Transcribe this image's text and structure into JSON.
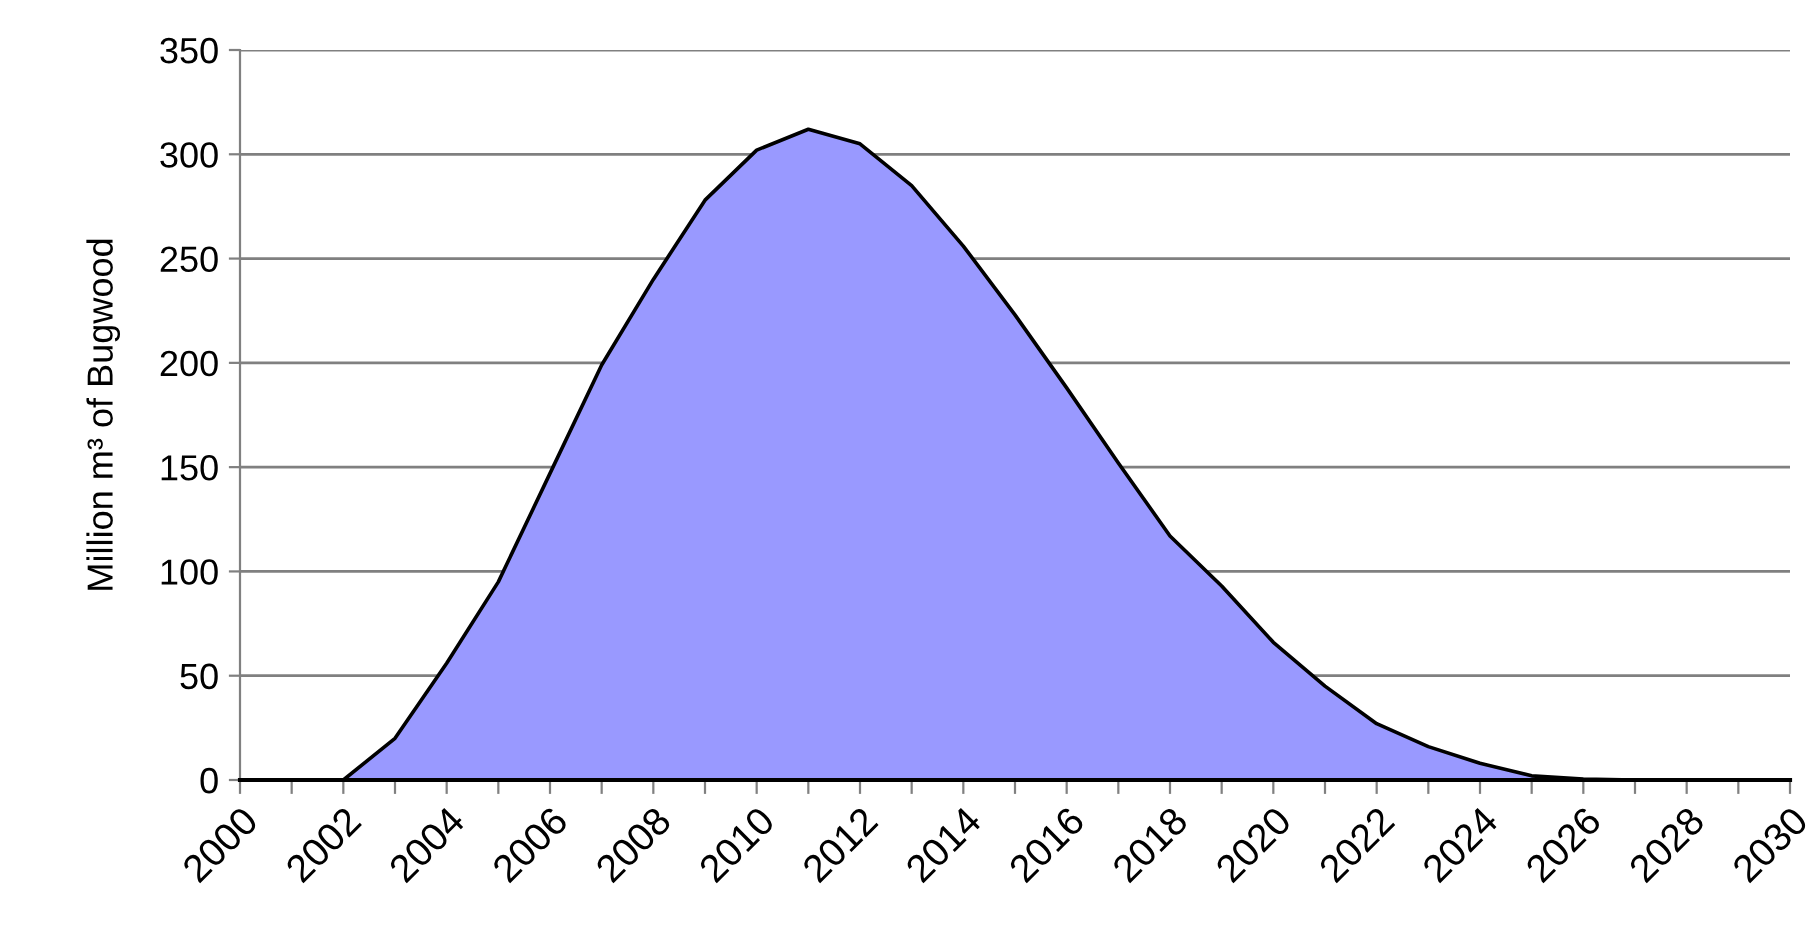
{
  "chart_data": {
    "type": "area",
    "ylabel": "Million m³ of Bugwood",
    "x": [
      2002,
      2003,
      2004,
      2005,
      2006,
      2007,
      2008,
      2009,
      2010,
      2011,
      2012,
      2013,
      2014,
      2015,
      2016,
      2017,
      2018,
      2019,
      2020,
      2021,
      2022,
      2023,
      2024,
      2025,
      2026,
      2027,
      2028,
      2029,
      2030
    ],
    "series": [
      {
        "color": "#9999ff",
        "values": [
          0,
          20,
          56,
          95,
          147,
          199,
          240,
          278,
          302,
          312,
          305,
          285,
          256,
          223,
          188,
          152,
          117,
          93,
          66,
          45,
          27,
          16,
          8,
          2,
          0.5,
          0,
          0,
          0,
          0
        ]
      }
    ],
    "xlim": [
      2000,
      2030
    ],
    "ylim": [
      0,
      350
    ],
    "xticks": [
      2000,
      {
        "value": 2001,
        "label": null
      },
      2002,
      {
        "value": 2003,
        "label": null
      },
      2004,
      {
        "value": 2005,
        "label": null
      },
      2006,
      {
        "value": 2007,
        "label": null
      },
      2008,
      {
        "value": 2009,
        "label": null
      },
      2010,
      {
        "value": 2011,
        "label": null
      },
      2012,
      {
        "value": 2013,
        "label": null
      },
      2014,
      {
        "value": 2015,
        "label": null
      },
      2016,
      {
        "value": 2017,
        "label": null
      },
      2018,
      {
        "value": 2019,
        "label": null
      },
      2020,
      {
        "value": 2021,
        "label": null
      },
      2022,
      {
        "value": 2023,
        "label": null
      },
      2024,
      {
        "value": 2025,
        "label": null
      },
      2026,
      {
        "value": 2027,
        "label": null
      },
      2028,
      {
        "value": 2029,
        "label": null
      },
      2030
    ],
    "yticks": [
      0,
      50,
      100,
      150,
      200,
      250,
      300,
      350
    ],
    "grid": "y"
  }
}
